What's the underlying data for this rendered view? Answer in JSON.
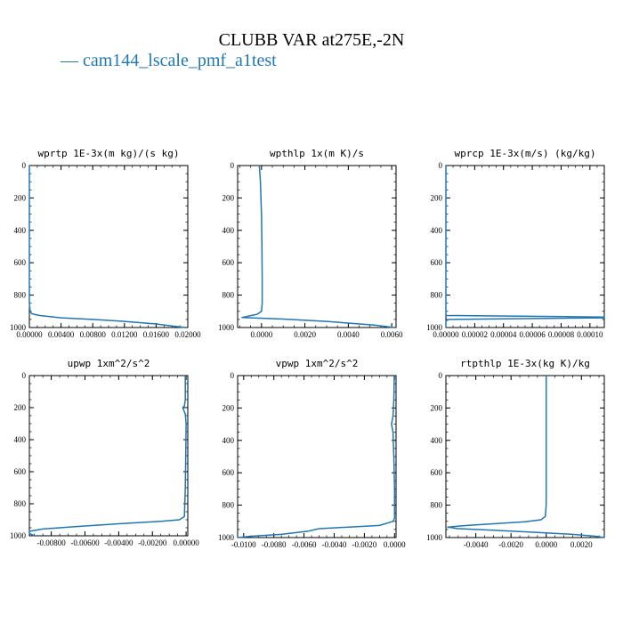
{
  "title": "CLUBB VAR at275E,-2N",
  "legend": {
    "marker": "—",
    "label": "cam144_lscale_pmf_a1test",
    "color": "#1f77b4"
  },
  "line_color": "#1f77b4",
  "chart_data": [
    {
      "type": "line",
      "title": "wprtp  1E-3x(m kg)/(s kg)",
      "xlim": [
        0,
        0.02
      ],
      "ylim": [
        1000,
        0
      ],
      "xticks": [
        0,
        0.004,
        0.008,
        0.012,
        0.016,
        0.02
      ],
      "xtick_labels": [
        "0.00000",
        "0.00400",
        "0.00800",
        "0.01200",
        "0.01600",
        "0.02000"
      ],
      "yticks": [
        0,
        200,
        400,
        600,
        800,
        1000
      ],
      "ytick_labels": [
        "0",
        "200",
        "400",
        "600",
        "800",
        "1000"
      ],
      "series": [
        {
          "points": [
            [
              0,
              0
            ],
            [
              0,
              300
            ],
            [
              0,
              600
            ],
            [
              0,
              850
            ],
            [
              0.0001,
              900
            ],
            [
              0.0003,
              915
            ],
            [
              0.0012,
              925
            ],
            [
              0.004,
              940
            ],
            [
              0.008,
              950
            ],
            [
              0.012,
              962
            ],
            [
              0.016,
              978
            ],
            [
              0.018,
              990
            ],
            [
              0.0197,
              1000
            ]
          ]
        }
      ]
    },
    {
      "type": "line",
      "title": "wpthlp  1x(m K)/s",
      "xlim": [
        -0.0011,
        0.0062
      ],
      "ylim": [
        1000,
        0
      ],
      "xticks": [
        0,
        0.002,
        0.004,
        0.006
      ],
      "xtick_labels": [
        "0.0000",
        "0.0020",
        "0.0040",
        "0.0060"
      ],
      "yticks": [
        0,
        200,
        400,
        600,
        800,
        1000
      ],
      "ytick_labels": [
        "0",
        "200",
        "400",
        "600",
        "800",
        "1000"
      ],
      "series": [
        {
          "points": [
            [
              -0.0001,
              0
            ],
            [
              -5e-05,
              100
            ],
            [
              0,
              300
            ],
            [
              2e-05,
              500
            ],
            [
              3e-05,
              700
            ],
            [
              3e-05,
              850
            ],
            [
              0,
              900
            ],
            [
              -0.0002,
              918
            ],
            [
              -0.0009,
              938
            ],
            [
              0.001,
              948
            ],
            [
              0.003,
              962
            ],
            [
              0.0052,
              985
            ],
            [
              0.0061,
              1000
            ]
          ]
        }
      ]
    },
    {
      "type": "line",
      "title": "wprcp  1E-3x(m/s) (kg/kg)",
      "xlim": [
        0,
        0.00011
      ],
      "ylim": [
        1000,
        0
      ],
      "xticks": [
        0,
        2e-05,
        4e-05,
        6e-05,
        8e-05,
        0.0001
      ],
      "xtick_labels": [
        "0.00000",
        "0.00002",
        "0.00004",
        "0.00006",
        "0.00008",
        "0.00010"
      ],
      "yticks": [
        0,
        200,
        400,
        600,
        800,
        1000
      ],
      "ytick_labels": [
        "0",
        "200",
        "400",
        "600",
        "800",
        "1000"
      ],
      "series": [
        {
          "points": [
            [
              0,
              0
            ],
            [
              0,
              500
            ],
            [
              0,
              920
            ],
            [
              5e-07,
              926
            ],
            [
              0.00011,
              935
            ],
            [
              0.00011,
              940
            ],
            [
              2e-06,
              950
            ],
            [
              0,
              960
            ],
            [
              0,
              1000
            ]
          ]
        }
      ]
    },
    {
      "type": "line",
      "title": "upwp  1xm^2/s^2",
      "xlim": [
        -0.0093,
        0.0001
      ],
      "ylim": [
        1000,
        0
      ],
      "xticks": [
        -0.008,
        -0.006,
        -0.004,
        -0.002,
        0
      ],
      "xtick_labels": [
        "-0.00800",
        "-0.00600",
        "-0.00400",
        "-0.00200",
        "0.00000"
      ],
      "yticks": [
        0,
        200,
        400,
        600,
        800,
        1000
      ],
      "ytick_labels": [
        "0",
        "200",
        "400",
        "600",
        "800",
        "1000"
      ],
      "series": [
        {
          "points": [
            [
              -5e-05,
              0
            ],
            [
              -5e-05,
              150
            ],
            [
              -0.0001,
              190
            ],
            [
              -0.0002,
              200
            ],
            [
              -5e-05,
              240
            ],
            [
              0,
              300
            ],
            [
              -2e-05,
              500
            ],
            [
              -5e-05,
              700
            ],
            [
              -0.0001,
              880
            ],
            [
              -0.0004,
              900
            ],
            [
              -0.0015,
              910
            ],
            [
              -0.004,
              925
            ],
            [
              -0.0065,
              942
            ],
            [
              -0.0085,
              958
            ],
            [
              -0.0093,
              972
            ],
            [
              -0.0093,
              985
            ],
            [
              -0.009,
              1000
            ]
          ]
        }
      ]
    },
    {
      "type": "line",
      "title": "vpwp  1xm^2/s^2",
      "xlim": [
        -0.0104,
        0.0001
      ],
      "ylim": [
        1000,
        0
      ],
      "xticks": [
        -0.01,
        -0.008,
        -0.006,
        -0.004,
        -0.002,
        0
      ],
      "xtick_labels": [
        "-0.0100",
        "-0.0080",
        "-0.0060",
        "-0.0040",
        "-0.0020",
        "0.0000"
      ],
      "yticks": [
        0,
        200,
        400,
        600,
        800,
        1000
      ],
      "ytick_labels": [
        "0",
        "200",
        "400",
        "600",
        "800",
        "1000"
      ],
      "series": [
        {
          "points": [
            [
              -2e-05,
              0
            ],
            [
              -5e-05,
              150
            ],
            [
              -0.0001,
              250
            ],
            [
              -0.0002,
              300
            ],
            [
              -0.0001,
              350
            ],
            [
              -5e-05,
              500
            ],
            [
              0,
              700
            ],
            [
              0,
              880
            ],
            [
              -0.0001,
              900
            ],
            [
              -0.001,
              925
            ],
            [
              -0.003,
              935
            ],
            [
              -0.005,
              945
            ],
            [
              -0.0057,
              960
            ],
            [
              -0.0075,
              980
            ],
            [
              -0.0095,
              992
            ],
            [
              -0.0104,
              1000
            ]
          ]
        }
      ]
    },
    {
      "type": "line",
      "title": "rtpthlp  1E-3x(kg K)/kg",
      "xlim": [
        -0.0057,
        0.0033
      ],
      "ylim": [
        1000,
        0
      ],
      "xticks": [
        -0.004,
        -0.002,
        0,
        0.002
      ],
      "xtick_labels": [
        "-0.0040",
        "-0.0020",
        "0.0000",
        "0.0020"
      ],
      "yticks": [
        0,
        200,
        400,
        600,
        800,
        1000
      ],
      "ytick_labels": [
        "0",
        "200",
        "400",
        "600",
        "800",
        "1000"
      ],
      "series": [
        {
          "points": [
            [
              0,
              0
            ],
            [
              0,
              400
            ],
            [
              0,
              800
            ],
            [
              -5e-05,
              870
            ],
            [
              -0.0003,
              890
            ],
            [
              -0.0012,
              902
            ],
            [
              -0.003,
              915
            ],
            [
              -0.0045,
              925
            ],
            [
              -0.0056,
              935
            ],
            [
              -0.005,
              945
            ],
            [
              -0.003,
              955
            ],
            [
              -0.0005,
              968
            ],
            [
              0.0015,
              980
            ],
            [
              0.0028,
              992
            ],
            [
              0.0033,
              1000
            ]
          ]
        }
      ]
    }
  ]
}
